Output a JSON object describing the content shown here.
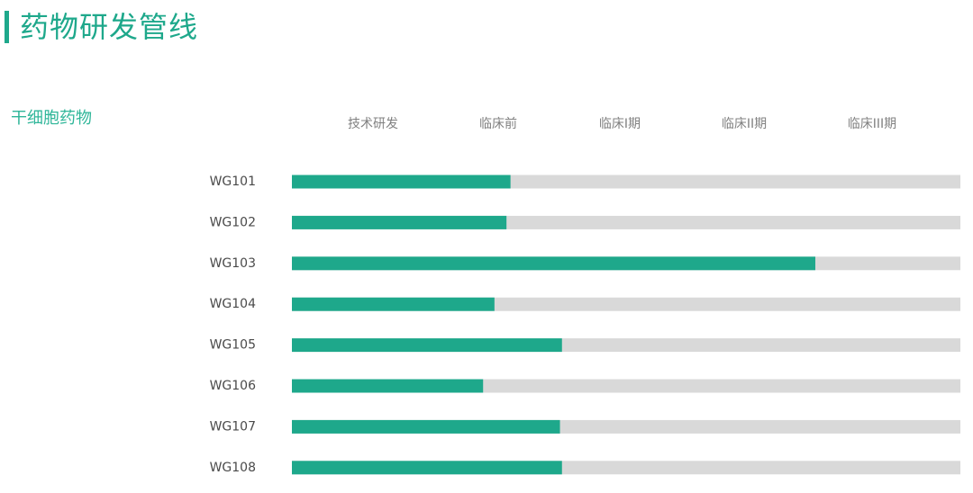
{
  "page": {
    "title": "药物研发管线",
    "category": "干细胞药物"
  },
  "colors": {
    "accent": "#1ea88b",
    "track": "#d9d9d9",
    "stage_label": "#808080",
    "drug_label": "#4a4a4a"
  },
  "chart_data": {
    "type": "bar",
    "orientation": "horizontal",
    "stages": [
      "技术研发",
      "临床前",
      "临床I期",
      "临床II期",
      "临床III期"
    ],
    "categories": [
      "WG101",
      "WG102",
      "WG103",
      "WG104",
      "WG105",
      "WG106",
      "WG107",
      "WG108"
    ],
    "values": [
      0.327,
      0.321,
      0.783,
      0.303,
      0.404,
      0.286,
      0.401,
      0.404
    ],
    "value_unit": "fraction of full pipeline (技术研发 → 临床III期)",
    "xlim": [
      0,
      1
    ],
    "grid": false,
    "legend": "none"
  }
}
